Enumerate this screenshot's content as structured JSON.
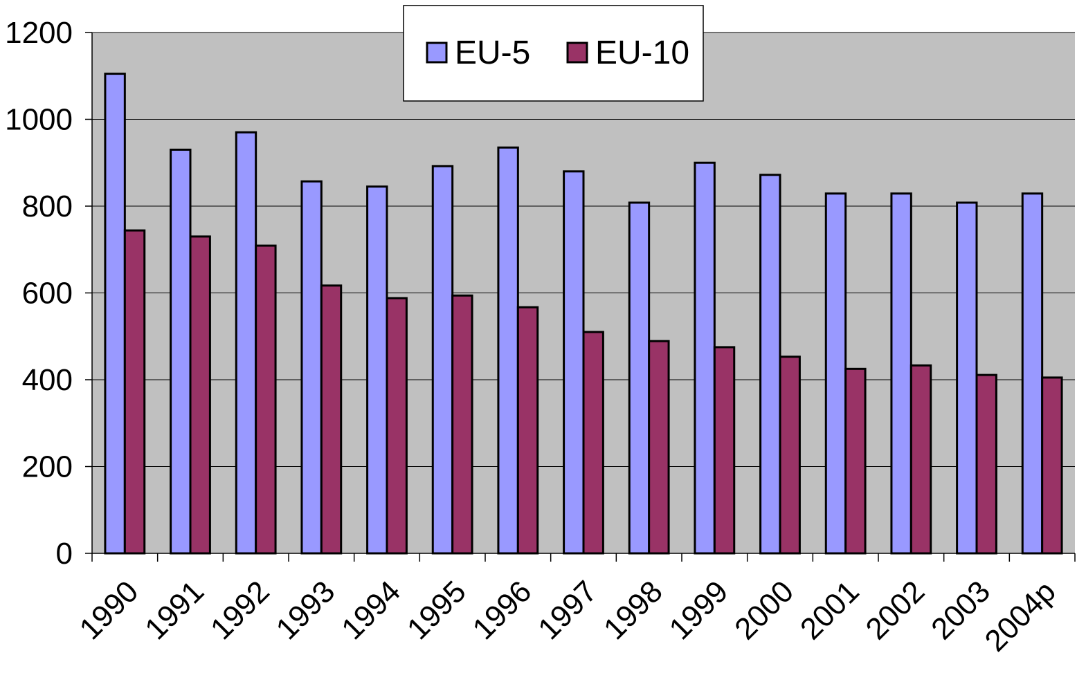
{
  "chart_data": {
    "type": "bar",
    "categories": [
      "1990",
      "1991",
      "1992",
      "1993",
      "1994",
      "1995",
      "1996",
      "1997",
      "1998",
      "1999",
      "2000",
      "2001",
      "2002",
      "2003",
      "2004p"
    ],
    "series": [
      {
        "name": "EU-5",
        "color": "#9999ff",
        "values": [
          1105,
          930,
          970,
          857,
          845,
          892,
          935,
          880,
          808,
          900,
          872,
          829,
          829,
          808,
          829
        ]
      },
      {
        "name": "EU-10",
        "color": "#993366",
        "values": [
          744,
          730,
          709,
          617,
          588,
          594,
          567,
          510,
          489,
          475,
          453,
          425,
          433,
          411,
          405
        ]
      }
    ],
    "ylim": [
      0,
      1200
    ],
    "yticks": [
      0,
      200,
      400,
      600,
      800,
      1000,
      1200
    ],
    "grid": true,
    "legend": "top"
  }
}
